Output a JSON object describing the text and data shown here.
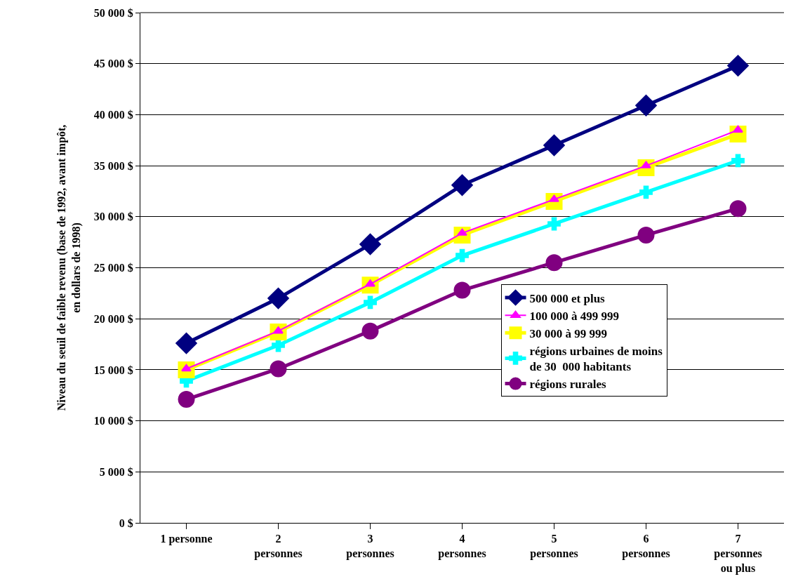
{
  "chart_data": {
    "type": "line",
    "ylabel": "Niveau du seuil de faible revenu (base de 1992, avant impôt, en dollars de 1998)",
    "categories": [
      "1 personne",
      "2\npersonnes",
      "3\npersonnes",
      "4\npersonnes",
      "5\npersonnes",
      "6\npersonnes",
      "7\npersonnes\nou plus"
    ],
    "series": [
      {
        "name": "500 000 et plus",
        "color": "#000080",
        "marker": "diamond",
        "values": [
          17600,
          22000,
          27300,
          33100,
          37000,
          40900,
          44800
        ]
      },
      {
        "name": "100 000 à 499 999",
        "color": "#ff00ff",
        "marker": "triangle",
        "values": [
          15100,
          18800,
          23400,
          28400,
          31700,
          35000,
          38500
        ]
      },
      {
        "name": "30 000 à 99 999",
        "color": "#ffff00",
        "marker": "square",
        "values": [
          15000,
          18700,
          23300,
          28200,
          31500,
          34800,
          38100
        ]
      },
      {
        "name": "régions urbaines de moins\nde 30  000 habitants",
        "color": "#00ffff",
        "marker": "cross",
        "values": [
          13900,
          17400,
          21600,
          26200,
          29300,
          32400,
          35500
        ]
      },
      {
        "name": "régions rurales",
        "color": "#800080",
        "marker": "circle",
        "values": [
          12100,
          15100,
          18800,
          22800,
          25500,
          28200,
          30800
        ]
      }
    ],
    "ylim": [
      0,
      50000
    ],
    "yticks": [
      {
        "value": 0,
        "label": "0 $"
      },
      {
        "value": 5000,
        "label": "5 000 $"
      },
      {
        "value": 10000,
        "label": "10 000 $"
      },
      {
        "value": 15000,
        "label": "15 000 $"
      },
      {
        "value": 20000,
        "label": "20 000 $"
      },
      {
        "value": 25000,
        "label": "25 000 $"
      },
      {
        "value": 30000,
        "label": "30 000 $"
      },
      {
        "value": 35000,
        "label": "35 000 $"
      },
      {
        "value": 40000,
        "label": "40 000 $"
      },
      {
        "value": 45000,
        "label": "45 000 $"
      },
      {
        "value": 50000,
        "label": "50 000 $"
      }
    ],
    "grid": "y",
    "legend": "right",
    "line_style": "solid"
  }
}
